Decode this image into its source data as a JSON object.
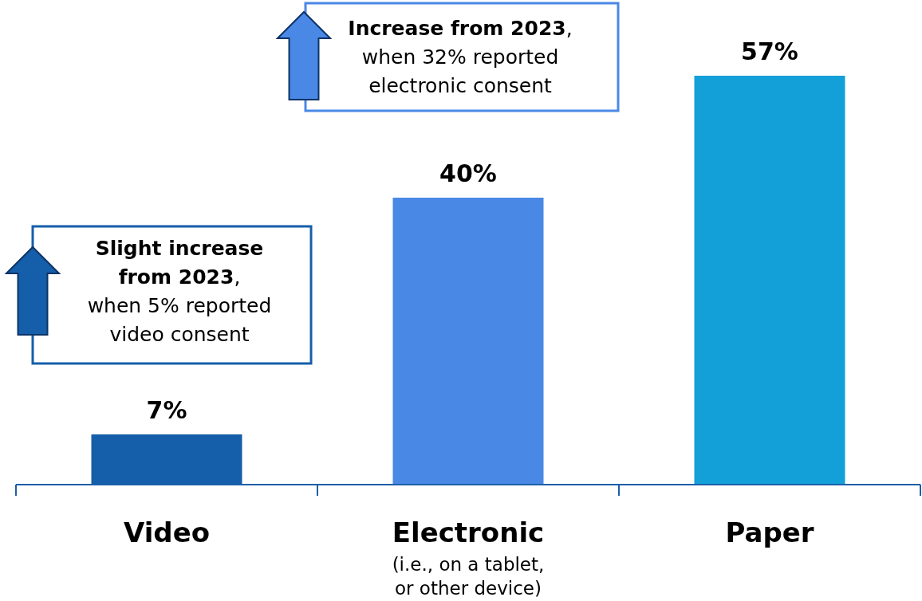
{
  "chart_data": {
    "type": "bar",
    "categories": [
      "Video",
      "Electronic",
      "Paper"
    ],
    "values": [
      7,
      40,
      57
    ],
    "colors": [
      "#155ea9",
      "#4a88e6",
      "#139fd8"
    ],
    "value_labels": [
      "7%",
      "40%",
      "57%"
    ],
    "tick_labels": "x",
    "annotations": [
      "Slight increase\nfrom 2023,\nwhen 5% reported\nvideo consent",
      "Increase from 2023,\nwhen 32% reported\nelectronic consent",
      "(i.e., on a tablet,\nor other device)"
    ]
  }
}
